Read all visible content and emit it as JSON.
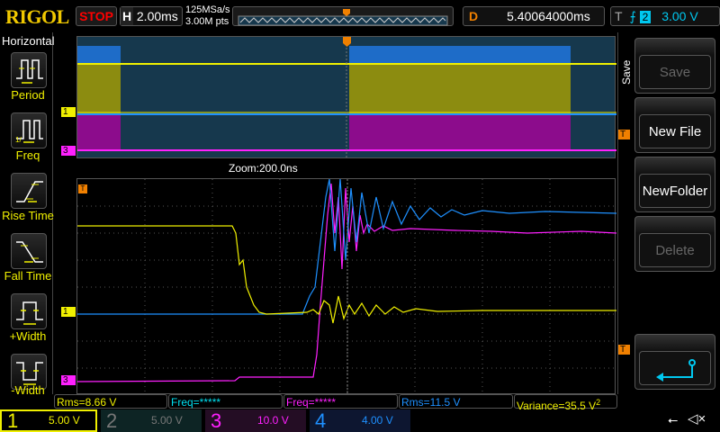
{
  "header": {
    "logo": "RIGOL",
    "run_state": "STOP",
    "h_label": "H",
    "timebase": "2.00ms",
    "sample_rate": "125MSa/s",
    "memory_depth": "3.00M pts",
    "delay_label": "D",
    "delay": "5.40064000ms",
    "trigger_label": "T",
    "trigger_source": "2",
    "trigger_level": "3.00 V",
    "trigger_edge_icon": "rising-edge-icon"
  },
  "sidebar": {
    "title": "Horizontal",
    "items": [
      {
        "label": "Period",
        "icon": "period-icon"
      },
      {
        "label": "Freq",
        "icon": "freq-icon"
      },
      {
        "label": "Rise Time",
        "icon": "rise-time-icon"
      },
      {
        "label": "Fall Time",
        "icon": "fall-time-icon"
      },
      {
        "label": "+Width",
        "icon": "pos-width-icon"
      },
      {
        "label": "-Width",
        "icon": "neg-width-icon"
      }
    ]
  },
  "zoom_label": "Zoom:200.0ns",
  "markers": {
    "ch1": "1",
    "ch3": "3",
    "trigger": "T"
  },
  "menu": {
    "title": "Save",
    "buttons": [
      {
        "label": "Save",
        "enabled": false
      },
      {
        "label": "New File",
        "enabled": true
      },
      {
        "label": "NewFolder",
        "enabled": true
      },
      {
        "label": "Delete",
        "enabled": false
      }
    ],
    "back_icon": "return-arrow-icon"
  },
  "measurements": [
    {
      "text": "Rms=8.66 V",
      "color": "#f0f000"
    },
    {
      "text": "Freq=*****",
      "color": "#00e0f0"
    },
    {
      "text": "Freq=*****",
      "color": "#ff20ff"
    },
    {
      "text": "Rms=11.5 V",
      "color": "#1e90ff"
    },
    {
      "text": "Variance=35.5 V",
      "sup": "2",
      "color": "#f0f000"
    }
  ],
  "channels": [
    {
      "num": "1",
      "scale": "5.00 V",
      "color": "#f0f000",
      "active": true
    },
    {
      "num": "2",
      "scale": "5.00 V",
      "color": "#777777",
      "active": false
    },
    {
      "num": "3",
      "scale": "10.0 V",
      "color": "#ff20ff",
      "active": true
    },
    {
      "num": "4",
      "scale": "4.00 V",
      "color": "#1e90ff",
      "active": true
    }
  ],
  "status_icons": [
    "usb-icon",
    "speaker-muted-icon"
  ]
}
